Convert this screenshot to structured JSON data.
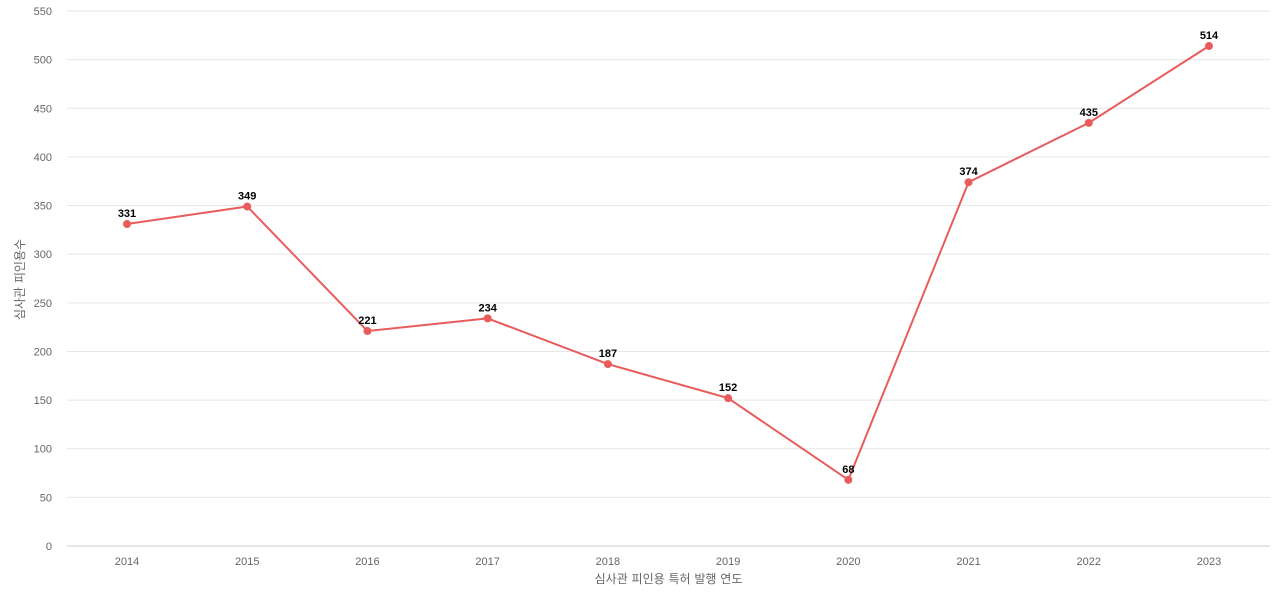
{
  "chart_data": {
    "type": "line",
    "title": "",
    "xlabel": "심사관 피인용 특허 발행 연도",
    "ylabel": "심사관 피인용수",
    "categories": [
      "2014",
      "2015",
      "2016",
      "2017",
      "2018",
      "2019",
      "2020",
      "2021",
      "2022",
      "2023"
    ],
    "series": [
      {
        "values": [
          331,
          349,
          221,
          234,
          187,
          152,
          68,
          374,
          435,
          514
        ],
        "color": "#e85c5c"
      }
    ],
    "ylim": [
      0,
      550
    ],
    "yticks": [
      0,
      50,
      100,
      150,
      200,
      250,
      300,
      350,
      400,
      450,
      500,
      550
    ],
    "grid": true,
    "legend": "none",
    "data_labels": true
  }
}
